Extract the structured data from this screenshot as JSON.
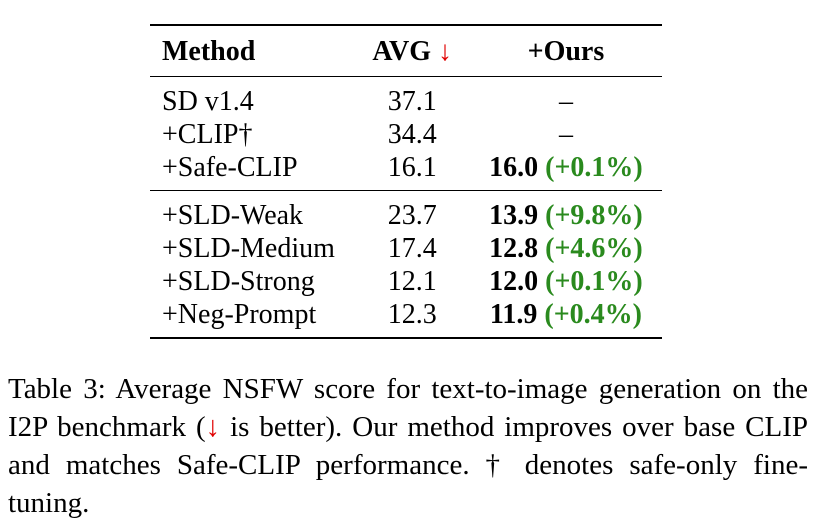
{
  "table": {
    "headers": {
      "method": "Method",
      "avg": "AVG",
      "avg_arrow": "↓",
      "ours": "+Ours"
    },
    "group1": [
      {
        "method": "SD v1.4",
        "avg": "37.1",
        "ours_value": "–",
        "ours_gain": ""
      },
      {
        "method": "+CLIP†",
        "avg": "34.4",
        "ours_value": "–",
        "ours_gain": ""
      },
      {
        "method": "+Safe-CLIP",
        "avg": "16.1",
        "ours_value": "16.0",
        "ours_gain": "(+0.1%)"
      }
    ],
    "group2": [
      {
        "method": "+SLD-Weak",
        "avg": "23.7",
        "ours_value": "13.9",
        "ours_gain": "(+9.8%)"
      },
      {
        "method": "+SLD-Medium",
        "avg": "17.4",
        "ours_value": "12.8",
        "ours_gain": "(+4.6%)"
      },
      {
        "method": "+SLD-Strong",
        "avg": "12.1",
        "ours_value": "12.0",
        "ours_gain": "(+0.1%)"
      },
      {
        "method": "+Neg-Prompt",
        "avg": "12.3",
        "ours_value": "11.9",
        "ours_gain": "(+0.4%)"
      }
    ],
    "colors": {
      "arrow": "#e00000",
      "gain": "#2a8a1e"
    }
  },
  "caption": {
    "part1": "Table 3: Average NSFW score for text-to-image generation on the I2P benchmark (",
    "arrow": "↓",
    "part2": " is better). Our method improves over base CLIP and matches Safe-CLIP performance. † denotes safe-only fine-tuning."
  }
}
